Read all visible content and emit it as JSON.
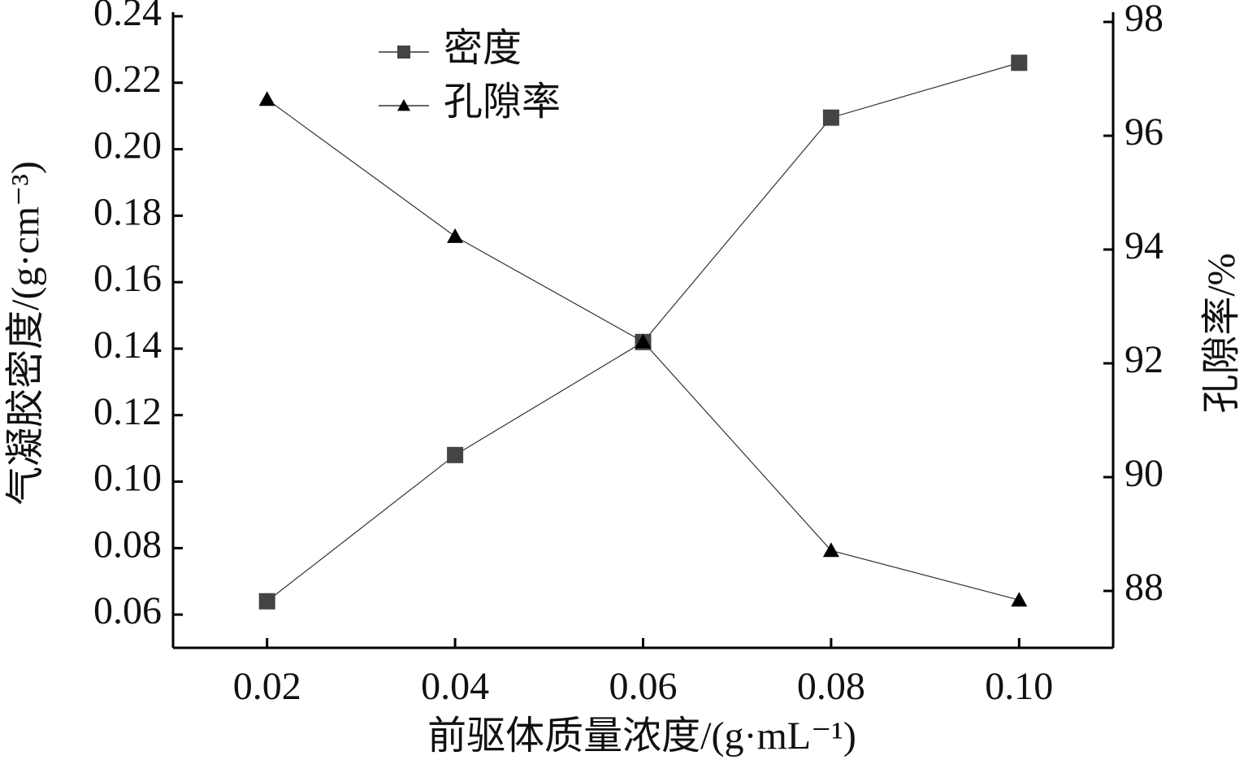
{
  "chart_data": {
    "type": "line",
    "x_label": "前驱体质量浓度/(g·mL⁻¹)",
    "y_label": "气凝胶密度/(g·cm⁻³)",
    "y2_label": "孔隙率/%",
    "x": [
      0.02,
      0.04,
      0.06,
      0.08,
      0.1
    ],
    "xlim": [
      0.01,
      0.11
    ],
    "xticks": [
      0.02,
      0.04,
      0.06,
      0.08,
      {
        "value": 0.1,
        "label": "0.10"
      }
    ],
    "ylim": [
      0.05,
      0.24
    ],
    "yticks": [
      0.06,
      0.08,
      {
        "value": 0.1,
        "label": "0.10"
      },
      0.12,
      0.14,
      0.16,
      0.18,
      {
        "value": 0.2,
        "label": "0.20"
      },
      0.22,
      0.24
    ],
    "y2lim": [
      87,
      98.1
    ],
    "y2ticks": [
      88,
      90,
      92,
      94,
      96,
      98
    ],
    "legend": "upper-left",
    "series": [
      {
        "name": "密度",
        "color": "#444444",
        "marker": "square",
        "values": [
          0.064,
          0.108,
          0.142,
          0.2095,
          0.226
        ]
      },
      {
        "name": "孔隙率",
        "color": "#000000",
        "marker": "triangle",
        "axis": "y2",
        "values": [
          96.64,
          94.23,
          92.38,
          88.71,
          87.84
        ]
      }
    ]
  }
}
